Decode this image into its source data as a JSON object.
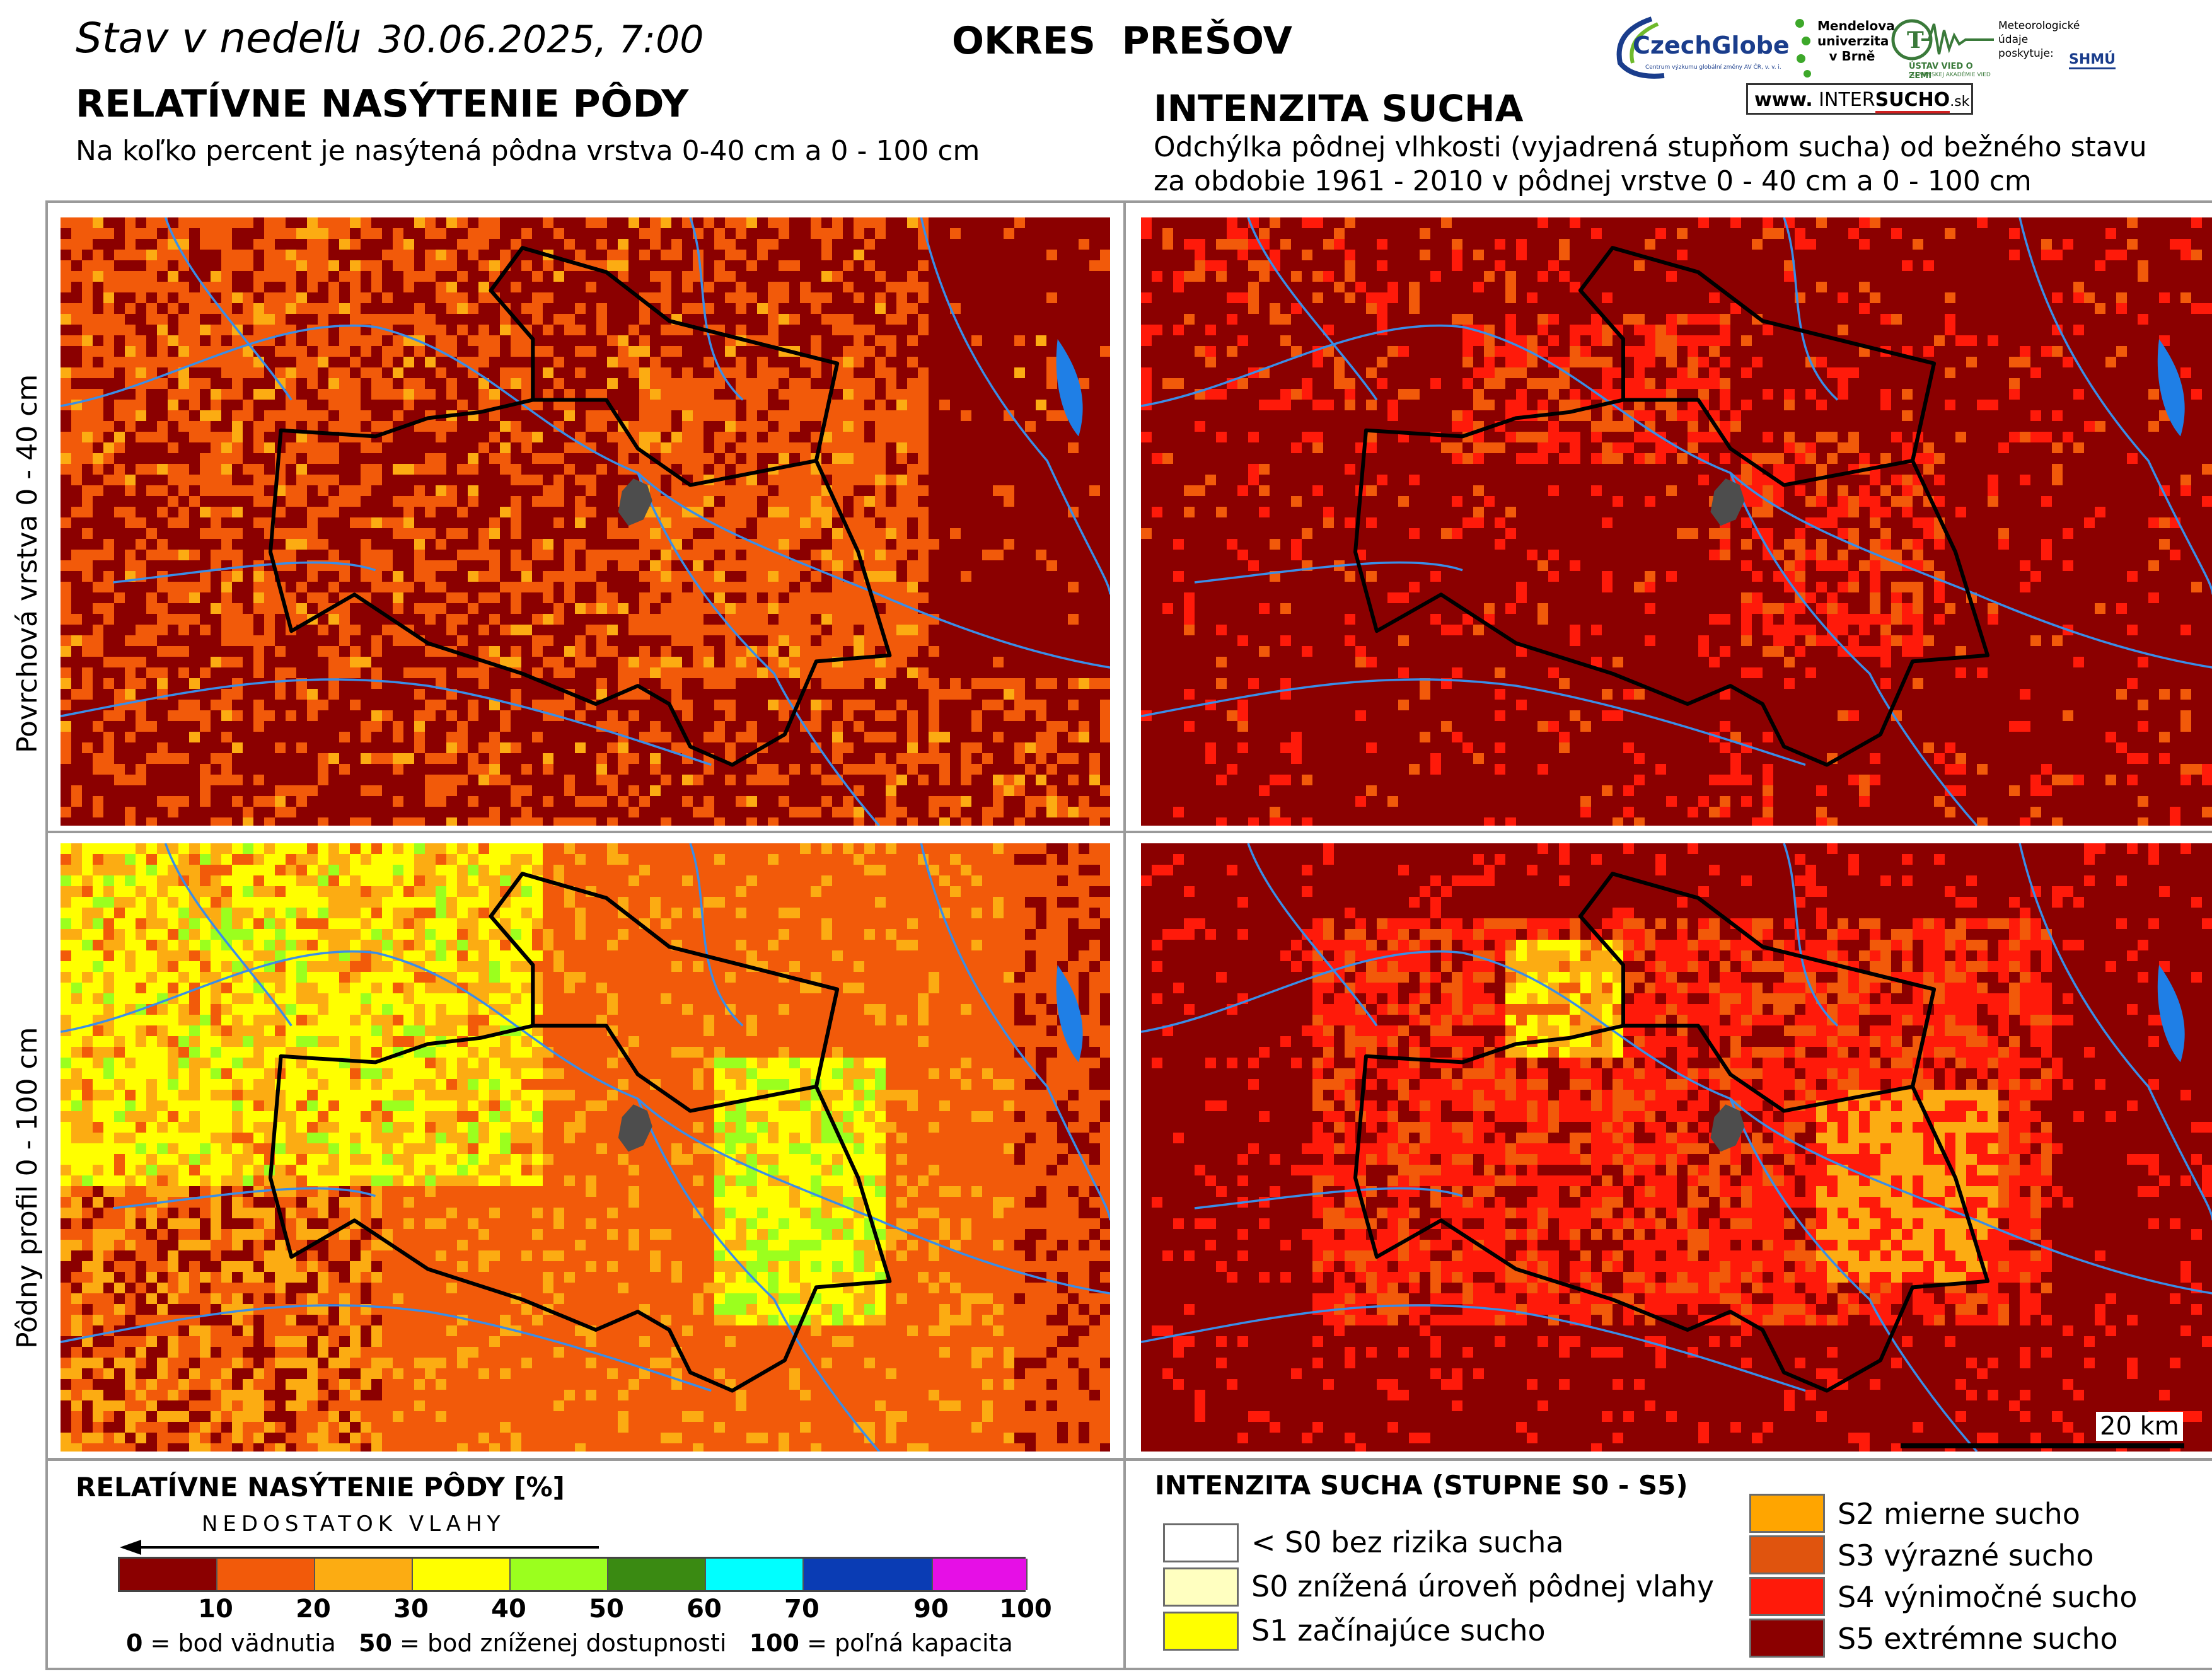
{
  "header": {
    "date_prefix": "Stav v nedeľu",
    "date_value": "30.06.2025, 7:00",
    "district": "OKRES  PREŠOV"
  },
  "left_section": {
    "title": "RELATÍVNE NASÝTENIE PÔDY",
    "subtitle": "Na koľko percent je nasýtená pôdna vrstva 0-40 cm a 0 - 100 cm"
  },
  "right_section": {
    "title": "INTENZITA SUCHA",
    "subtitle_line1": "Odchýlka pôdnej vlhkosti (vyjadrená stupňom sucha) od bežného stavu",
    "subtitle_line2": "za obdobie 1961 - 2010 v pôdnej vrstve 0 - 40 cm a 0 - 100 cm"
  },
  "row_labels": {
    "top": "Povrchová vrstva 0 - 40 cm",
    "bottom": "Pôdny profil 0 - 100 cm"
  },
  "logos": {
    "czechglobe": "CzechGlobe",
    "czechglobe_sub": "Centrum výzkumu globální změny AV ČR, v. v. i.",
    "mendel": "Mendelova univerzita v Brně",
    "ustav": "ÚSTAV VIED O ZEMI",
    "ustav_sub": "SLOVENSKEJ AKADÉMIE VIED",
    "meteo": "Meteorologické údaje poskytuje:",
    "shmu": "SHMÚ",
    "intersucho_prefix": "www.",
    "intersucho_inter": "INTER",
    "intersucho_sucho": "SUCHO",
    "intersucho_suffix": ".sk"
  },
  "scale_bar": {
    "label": "20 km"
  },
  "legend_saturation": {
    "title": "RELATÍVNE NASÝTENIE PÔDY [%]",
    "arrow_label": "NEDOSTATOK VLAHY",
    "ticks": [
      "10",
      "20",
      "30",
      "40",
      "50",
      "60",
      "70",
      "90",
      "100"
    ],
    "colors": [
      "#8b0000",
      "#f25a0a",
      "#fcac12",
      "#ffff00",
      "#9bff1e",
      "#3a8a12",
      "#00ffff",
      "#0a3cb4",
      "#e60fe6"
    ],
    "note_0": "0",
    "note_0_text": " = bod vädnutia",
    "note_50": "50",
    "note_50_text": " = bod zníženej dostupnosti",
    "note_100": "100",
    "note_100_text": " = poľná kapacita"
  },
  "legend_drought": {
    "title": "INTENZITA SUCHA (STUPNE S0 - S5)",
    "items": [
      {
        "label": "< S0 bez rizika sucha",
        "color": "#ffffff"
      },
      {
        "label": "S0 znížená úroveň pôdnej vlahy",
        "color": "#ffffc0"
      },
      {
        "label": "S1 začínajúce sucho",
        "color": "#ffff00"
      },
      {
        "label": "S2 mierne sucho",
        "color": "#ffa500"
      },
      {
        "label": "S3 výrazné sucho",
        "color": "#e0540e"
      },
      {
        "label": "S4 výnimočné sucho",
        "color": "#ff1a0a"
      },
      {
        "label": "S5 extrémne sucho",
        "color": "#8b0000"
      }
    ]
  },
  "colors": {
    "dark_red": "#8b0000",
    "orange": "#f25a0a",
    "light_orange": "#fcac12",
    "yellow": "#ffff00",
    "light_green": "#9bff1e",
    "bright_red": "#ff1a0a",
    "river": "#3a8ee8",
    "lake": "#1f7fe6",
    "border": "#000000"
  }
}
